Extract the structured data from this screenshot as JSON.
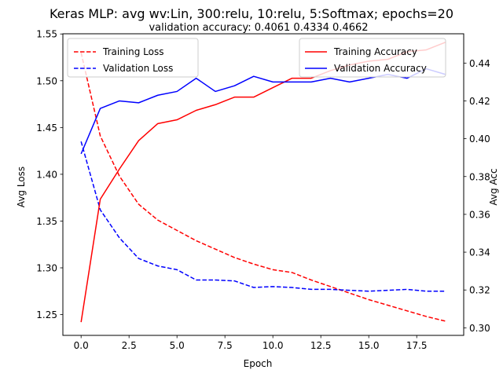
{
  "chart_data": {
    "type": "line",
    "title": "Keras MLP: avg wv:Lin, 300:relu, 10:relu, 5:Softmax; epochs=20",
    "subtitle": "validation accuracy:  0.4061  0.4334  0.4662",
    "xlabel": "Epoch",
    "ylabel_left": "Avg Loss",
    "ylabel_right": "Avg Acc",
    "x": [
      0,
      1,
      2,
      3,
      4,
      5,
      6,
      7,
      8,
      9,
      10,
      11,
      12,
      13,
      14,
      15,
      16,
      17,
      18,
      19
    ],
    "xlim": [
      -0.95,
      19.95
    ],
    "ylim_left": [
      1.2278,
      1.5502
    ],
    "ylim_right": [
      0.296,
      0.4555
    ],
    "xticks": [
      0.0,
      2.5,
      5.0,
      7.5,
      10.0,
      12.5,
      15.0,
      17.5
    ],
    "xtick_labels": [
      "0.0",
      "2.5",
      "5.0",
      "7.5",
      "10.0",
      "12.5",
      "15.0",
      "17.5"
    ],
    "yticks_left": [
      1.25,
      1.3,
      1.35,
      1.4,
      1.45,
      1.5,
      1.55
    ],
    "ytick_labels_left": [
      "1.25",
      "1.30",
      "1.35",
      "1.40",
      "1.45",
      "1.50",
      "1.55"
    ],
    "yticks_right": [
      0.3,
      0.32,
      0.34,
      0.36,
      0.38,
      0.4,
      0.42,
      0.44
    ],
    "ytick_labels_right": [
      "0.30",
      "0.32",
      "0.34",
      "0.36",
      "0.38",
      "0.40",
      "0.42",
      "0.44"
    ],
    "grid": false,
    "loss_series": [
      {
        "name": "Training Loss",
        "color": "#ff0000",
        "style": "dashed",
        "axis": "left",
        "values": [
          1.53,
          1.441,
          1.398,
          1.368,
          1.351,
          1.34,
          1.329,
          1.32,
          1.311,
          1.304,
          1.298,
          1.295,
          1.287,
          1.28,
          1.273,
          1.266,
          1.26,
          1.254,
          1.248,
          1.243
        ]
      },
      {
        "name": "Validation Loss",
        "color": "#0000ff",
        "style": "dashed",
        "axis": "left",
        "values": [
          1.435,
          1.362,
          1.332,
          1.31,
          1.302,
          1.298,
          1.287,
          1.287,
          1.286,
          1.279,
          1.28,
          1.279,
          1.277,
          1.277,
          1.276,
          1.275,
          1.276,
          1.277,
          1.275,
          1.275
        ]
      }
    ],
    "acc_series": [
      {
        "name": "Training Accuracy",
        "color": "#ff0000",
        "style": "solid",
        "axis": "right",
        "values": [
          0.303,
          0.368,
          0.384,
          0.399,
          0.408,
          0.41,
          0.415,
          0.418,
          0.422,
          0.422,
          0.427,
          0.432,
          0.432,
          0.436,
          0.439,
          0.441,
          0.442,
          0.446,
          0.447,
          0.451
        ]
      },
      {
        "name": "Validation Accuracy",
        "color": "#0000ff",
        "style": "solid",
        "axis": "right",
        "values": [
          0.392,
          0.416,
          0.42,
          0.419,
          0.423,
          0.425,
          0.432,
          0.425,
          0.428,
          0.433,
          0.43,
          0.43,
          0.43,
          0.432,
          0.43,
          0.432,
          0.434,
          0.432,
          0.437,
          0.434
        ]
      }
    ],
    "legend_left_placement": "upper-left",
    "legend_right_placement": "upper-right"
  }
}
